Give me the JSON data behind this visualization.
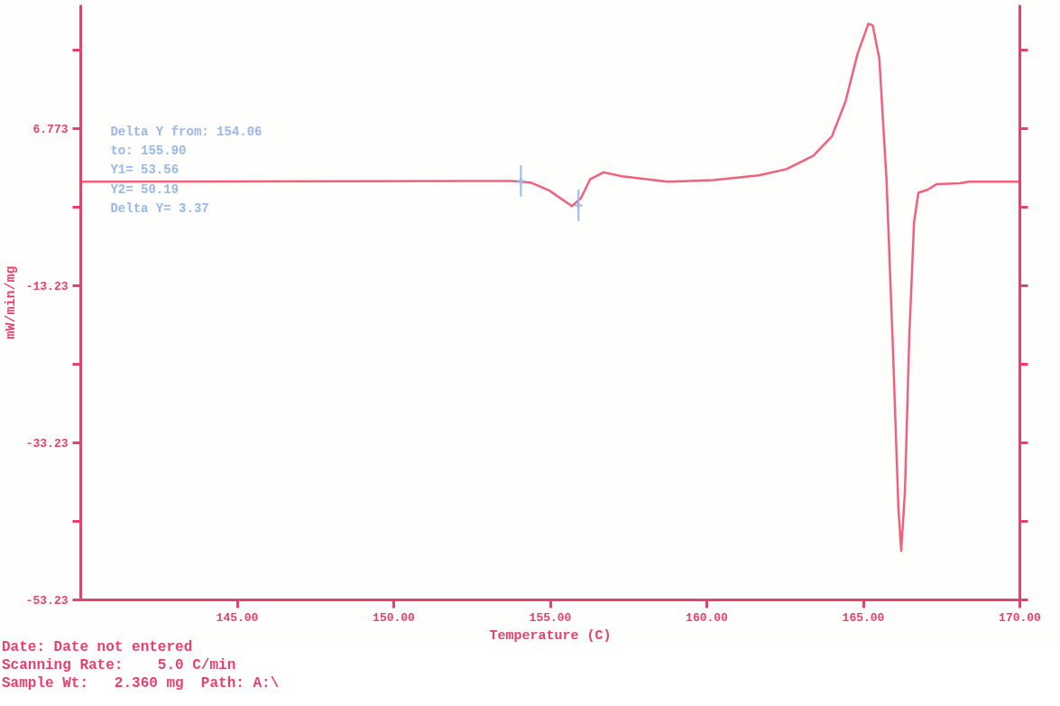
{
  "chart_data": {
    "type": "line",
    "xlabel": "Temperature (C)",
    "ylabel": "mW/min/mg",
    "xlim": [
      140,
      170
    ],
    "ylim": [
      -53.23,
      22.5
    ],
    "xticks": [
      {
        "value": 145,
        "label": "145.00"
      },
      {
        "value": 150,
        "label": "150.00"
      },
      {
        "value": 155,
        "label": "155.00"
      },
      {
        "value": 160,
        "label": "160.00"
      },
      {
        "value": 165,
        "label": "165.00"
      },
      {
        "value": 170,
        "label": "170.00"
      }
    ],
    "yticks": [
      {
        "value": -53.23,
        "label": "-53.23"
      },
      {
        "value": -43.23,
        "label": null
      },
      {
        "value": -33.23,
        "label": "-33.23"
      },
      {
        "value": -23.23,
        "label": null
      },
      {
        "value": -13.23,
        "label": "-13.23"
      },
      {
        "value": -3.23,
        "label": null
      },
      {
        "value": 6.773,
        "label": "6.773"
      },
      {
        "value": 16.773,
        "label": null
      }
    ],
    "grid": false,
    "series": [
      {
        "color": "#f2607f",
        "x": [
          140,
          153.79,
          154.37,
          154.96,
          155.69,
          155.98,
          156.27,
          156.7,
          157.29,
          158.75,
          160.2,
          161.66,
          162.54,
          163.4,
          164.0,
          164.43,
          164.81,
          165.16,
          165.3,
          165.51,
          165.74,
          165.95,
          166.12,
          166.21,
          166.33,
          166.47,
          166.62,
          166.76,
          167.06,
          167.35,
          168.08,
          168.37,
          170
        ],
        "values": [
          0,
          0.1,
          -0.1,
          -1.1,
          -3.1,
          -2.1,
          0.3,
          1.2,
          0.7,
          0,
          0.2,
          0.8,
          1.6,
          3.3,
          5.8,
          10.2,
          16.2,
          20.1,
          19.9,
          15.7,
          0.3,
          -21.7,
          -41.5,
          -47.0,
          -39.3,
          -19.5,
          -5.2,
          -1.4,
          -1.0,
          -0.3,
          -0.2,
          0,
          0
        ]
      },
      {
        "type": "scatter",
        "marker": "cross",
        "color": "#9ab8ea",
        "x": [
          154.06,
          155.9
        ],
        "values": [
          0.1,
          -3.0
        ],
        "errors": [
          2,
          2
        ]
      }
    ],
    "annotations": [
      "Delta Y from:  154.06",
      "            to:  155.90",
      "Y1= 53.56",
      "Y2= 50.19",
      "Delta Y= 3.37",
      "Date: Date not entered",
      "Scanning Rate:    5.0 C/min",
      "Sample Wt:   2.360 mg  Path: A:\\"
    ]
  }
}
